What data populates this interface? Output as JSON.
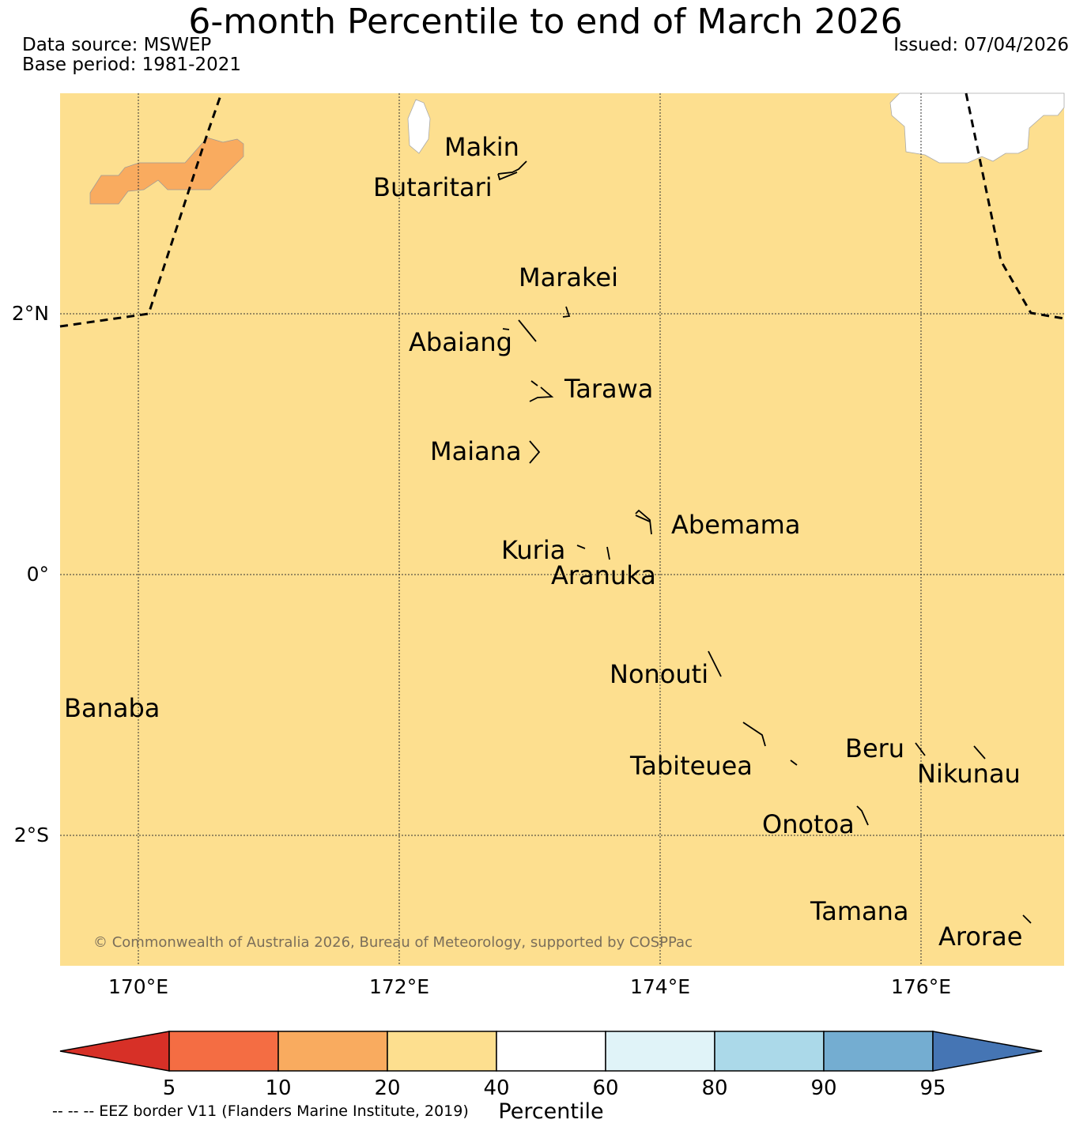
{
  "title": "6-month Percentile to end of March 2026",
  "data_source": "Data source: MSWEP",
  "base_period": "Base period: 1981-2021",
  "issued": "Issued: 07/04/2026",
  "copyright": "© Commonwealth of Australia 2026, Bureau of Meteorology, supported by COSPPac",
  "map": {
    "background_color": "#fddf8f",
    "patch_color": "#f9ab5f",
    "lat_labels": [
      "2°N",
      "0°",
      "2°S"
    ],
    "lon_labels": [
      "170°E",
      "172°E",
      "174°E",
      "176°E"
    ],
    "islands": [
      {
        "name": "Makin"
      },
      {
        "name": "Butaritari"
      },
      {
        "name": "Marakei"
      },
      {
        "name": "Abaiang"
      },
      {
        "name": "Tarawa"
      },
      {
        "name": "Maiana"
      },
      {
        "name": "Abemama"
      },
      {
        "name": "Kuria"
      },
      {
        "name": "Aranuka"
      },
      {
        "name": "Nonouti"
      },
      {
        "name": "Banaba"
      },
      {
        "name": "Beru"
      },
      {
        "name": "Tabiteuea"
      },
      {
        "name": "Nikunau"
      },
      {
        "name": "Onotoa"
      },
      {
        "name": "Tamana"
      },
      {
        "name": "Arorae"
      }
    ]
  },
  "colorbar": {
    "title": "Percentile",
    "ticks": [
      "5",
      "10",
      "20",
      "40",
      "60",
      "80",
      "90",
      "95"
    ],
    "colors": [
      "#d73027",
      "#f46d43",
      "#f9ab5f",
      "#fddf8f",
      "#ffffff",
      "#e0f3f8",
      "#abd9e9",
      "#74add1",
      "#4575b4"
    ]
  },
  "eez_note": "-- -- -- EEZ border V11 (Flanders Marine Institute, 2019)"
}
